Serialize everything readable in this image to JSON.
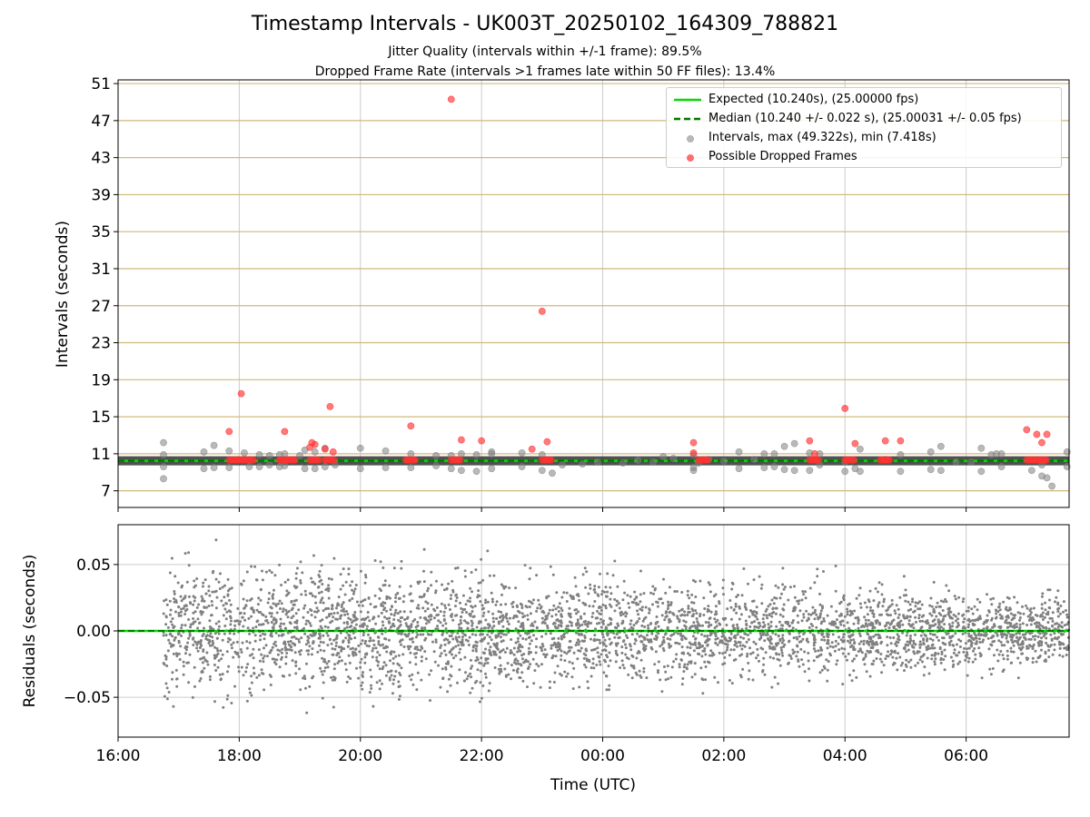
{
  "figure": {
    "title": "Timestamp Intervals - UK003T_20250102_164309_788821",
    "subtitle_1": "Jitter Quality (intervals within +/-1 frame): 89.5%",
    "subtitle_2": "Dropped Frame Rate (intervals >1 frames late within 50 FF files): 13.4%"
  },
  "legend": {
    "expected": "Expected (10.240s), (25.00000 fps)",
    "median": "Median (10.240 +/- 0.022 s), (25.00031 +/- 0.05 fps)",
    "intervals": "Intervals, max (49.322s), min (7.418s)",
    "dropped": "Possible Dropped Frames"
  },
  "colors": {
    "expected_line": "#00dd00",
    "median_line": "#007700",
    "interval_points": "#808080",
    "dropped_points": "#ff3333",
    "horizontal_grid_top": "#d2b97a",
    "vertical_grid": "#cccccc",
    "median_band": "#333333"
  },
  "chart_data": [
    {
      "type": "scatter",
      "xlabel": "",
      "ylabel": "Intervals (seconds)",
      "xlim": [
        "16:00",
        "07:42"
      ],
      "ylim": [
        5.2,
        51.4
      ],
      "yticks": [
        7,
        11,
        15,
        19,
        23,
        27,
        31,
        35,
        39,
        43,
        47,
        51
      ],
      "xticks": [
        "16:00",
        "18:00",
        "20:00",
        "22:00",
        "00:00",
        "02:00",
        "04:00",
        "06:00"
      ],
      "grid": "on",
      "legend_position": "top-right",
      "expected_interval": 10.24,
      "median_interval": 10.24,
      "median_spread": 0.022,
      "series": [
        {
          "name": "Intervals, max (49.322s), min (7.418s)",
          "points": [
            [
              "16:45",
              12.2
            ],
            [
              "16:45",
              10.9
            ],
            [
              "16:45",
              9.6
            ],
            [
              "16:45",
              8.3
            ],
            [
              "17:25",
              11.2
            ],
            [
              "17:25",
              9.4
            ],
            [
              "17:35",
              11.9
            ],
            [
              "17:35",
              9.5
            ],
            [
              "17:50",
              11.3
            ],
            [
              "17:50",
              9.5
            ],
            [
              "18:05",
              11.1
            ],
            [
              "18:10",
              9.6
            ],
            [
              "18:20",
              10.9
            ],
            [
              "18:20",
              9.6
            ],
            [
              "18:30",
              10.8
            ],
            [
              "18:30",
              9.8
            ],
            [
              "18:40",
              10.9
            ],
            [
              "18:40",
              9.6
            ],
            [
              "18:45",
              11.0
            ],
            [
              "18:45",
              9.7
            ],
            [
              "19:00",
              10.8
            ],
            [
              "19:05",
              11.4
            ],
            [
              "19:05",
              9.4
            ],
            [
              "19:15",
              11.2
            ],
            [
              "19:15",
              9.4
            ],
            [
              "19:25",
              11.6
            ],
            [
              "19:25",
              9.6
            ],
            [
              "19:35",
              9.8
            ],
            [
              "20:00",
              11.6
            ],
            [
              "20:00",
              9.4
            ],
            [
              "20:25",
              11.3
            ],
            [
              "20:25",
              9.5
            ],
            [
              "20:50",
              11.0
            ],
            [
              "20:50",
              9.5
            ],
            [
              "21:15",
              10.8
            ],
            [
              "21:15",
              9.7
            ],
            [
              "21:30",
              10.8
            ],
            [
              "21:30",
              9.4
            ],
            [
              "21:40",
              11.0
            ],
            [
              "21:40",
              9.2
            ],
            [
              "21:55",
              10.9
            ],
            [
              "21:55",
              9.1
            ],
            [
              "22:10",
              11.0
            ],
            [
              "22:10",
              9.4
            ],
            [
              "22:10",
              11.2
            ],
            [
              "22:40",
              11.1
            ],
            [
              "22:40",
              9.6
            ],
            [
              "23:00",
              10.9
            ],
            [
              "23:00",
              9.2
            ],
            [
              "23:10",
              8.9
            ],
            [
              "23:20",
              9.8
            ],
            [
              "23:40",
              9.9
            ],
            [
              "23:55",
              10.1
            ],
            [
              "00:20",
              10.0
            ],
            [
              "00:35",
              10.3
            ],
            [
              "00:50",
              10.1
            ],
            [
              "01:00",
              10.7
            ],
            [
              "01:10",
              10.5
            ],
            [
              "01:30",
              9.2
            ],
            [
              "01:30",
              9.5
            ],
            [
              "01:30",
              10.9
            ],
            [
              "01:35",
              10.0
            ],
            [
              "01:45",
              10.4
            ],
            [
              "02:00",
              10.2
            ],
            [
              "02:15",
              11.2
            ],
            [
              "02:15",
              9.4
            ],
            [
              "02:30",
              10.4
            ],
            [
              "02:40",
              11.0
            ],
            [
              "02:40",
              9.5
            ],
            [
              "02:50",
              11.0
            ],
            [
              "02:50",
              9.6
            ],
            [
              "03:00",
              11.8
            ],
            [
              "03:00",
              9.3
            ],
            [
              "03:10",
              12.1
            ],
            [
              "03:10",
              9.2
            ],
            [
              "03:25",
              11.1
            ],
            [
              "03:25",
              9.2
            ],
            [
              "03:35",
              11.0
            ],
            [
              "03:35",
              9.8
            ],
            [
              "04:00",
              10.1
            ],
            [
              "04:00",
              9.1
            ],
            [
              "04:10",
              9.4
            ],
            [
              "04:15",
              11.5
            ],
            [
              "04:15",
              9.1
            ],
            [
              "04:40",
              10.4
            ],
            [
              "04:55",
              10.9
            ],
            [
              "04:55",
              9.1
            ],
            [
              "05:25",
              11.2
            ],
            [
              "05:25",
              9.3
            ],
            [
              "05:35",
              11.8
            ],
            [
              "05:35",
              9.2
            ],
            [
              "05:50",
              10.1
            ],
            [
              "06:05",
              10.1
            ],
            [
              "06:15",
              11.6
            ],
            [
              "06:15",
              9.1
            ],
            [
              "06:25",
              10.9
            ],
            [
              "06:30",
              11.0
            ],
            [
              "06:35",
              11.0
            ],
            [
              "06:35",
              9.6
            ],
            [
              "07:05",
              9.2
            ],
            [
              "07:15",
              9.8
            ],
            [
              "07:15",
              8.6
            ],
            [
              "07:20",
              8.4
            ],
            [
              "07:25",
              7.5
            ],
            [
              "07:40",
              11.2
            ],
            [
              "07:40",
              9.6
            ]
          ]
        },
        {
          "name": "Possible Dropped Frames",
          "points": [
            [
              "17:50",
              13.4
            ],
            [
              "18:02",
              17.5
            ],
            [
              "18:45",
              13.4
            ],
            [
              "19:10",
              11.7
            ],
            [
              "19:12",
              12.2
            ],
            [
              "19:15",
              12.0
            ],
            [
              "19:25",
              11.5
            ],
            [
              "19:30",
              16.1
            ],
            [
              "19:33",
              11.2
            ],
            [
              "20:50",
              14.0
            ],
            [
              "21:30",
              49.3
            ],
            [
              "21:40",
              12.5
            ],
            [
              "22:00",
              12.4
            ],
            [
              "22:50",
              11.5
            ],
            [
              "23:00",
              26.4
            ],
            [
              "23:05",
              12.3
            ],
            [
              "01:30",
              12.2
            ],
            [
              "01:30",
              11.1
            ],
            [
              "03:25",
              12.4
            ],
            [
              "03:30",
              11.0
            ],
            [
              "04:00",
              15.9
            ],
            [
              "04:10",
              12.1
            ],
            [
              "04:40",
              12.4
            ],
            [
              "04:55",
              12.4
            ],
            [
              "07:00",
              13.6
            ],
            [
              "07:10",
              13.1
            ],
            [
              "07:15",
              12.2
            ],
            [
              "07:20",
              13.1
            ]
          ],
          "clusters": [
            [
              "17:50",
              "18:15"
            ],
            [
              "18:40",
              "18:55"
            ],
            [
              "19:10",
              "19:20"
            ],
            [
              "19:25",
              "19:35"
            ],
            [
              "20:45",
              "20:55"
            ],
            [
              "21:30",
              "21:40"
            ],
            [
              "23:00",
              "23:10"
            ],
            [
              "01:35",
              "01:45"
            ],
            [
              "03:25",
              "03:35"
            ],
            [
              "04:00",
              "04:10"
            ],
            [
              "04:35",
              "04:45"
            ],
            [
              "07:00",
              "07:20"
            ]
          ],
          "cluster_value": 10.33
        }
      ]
    },
    {
      "type": "scatter",
      "xlabel": "Time (UTC)",
      "ylabel": "Residuals (seconds)",
      "xlim": [
        "16:00",
        "07:42"
      ],
      "ylim": [
        -0.08,
        0.08
      ],
      "yticks": [
        -0.05,
        0.0,
        0.05
      ],
      "yticklabels": [
        "−0.05",
        "0.00",
        "0.05"
      ],
      "xticks": [
        "16:00",
        "18:00",
        "20:00",
        "22:00",
        "00:00",
        "02:00",
        "04:00",
        "06:00"
      ],
      "grid": "on",
      "x_range_of_points": [
        "16:45",
        "07:42"
      ],
      "residual_spread": {
        "start": 0.04,
        "end": 0.022
      },
      "point_count_approx": 4100,
      "zero_line": 0.0
    }
  ]
}
